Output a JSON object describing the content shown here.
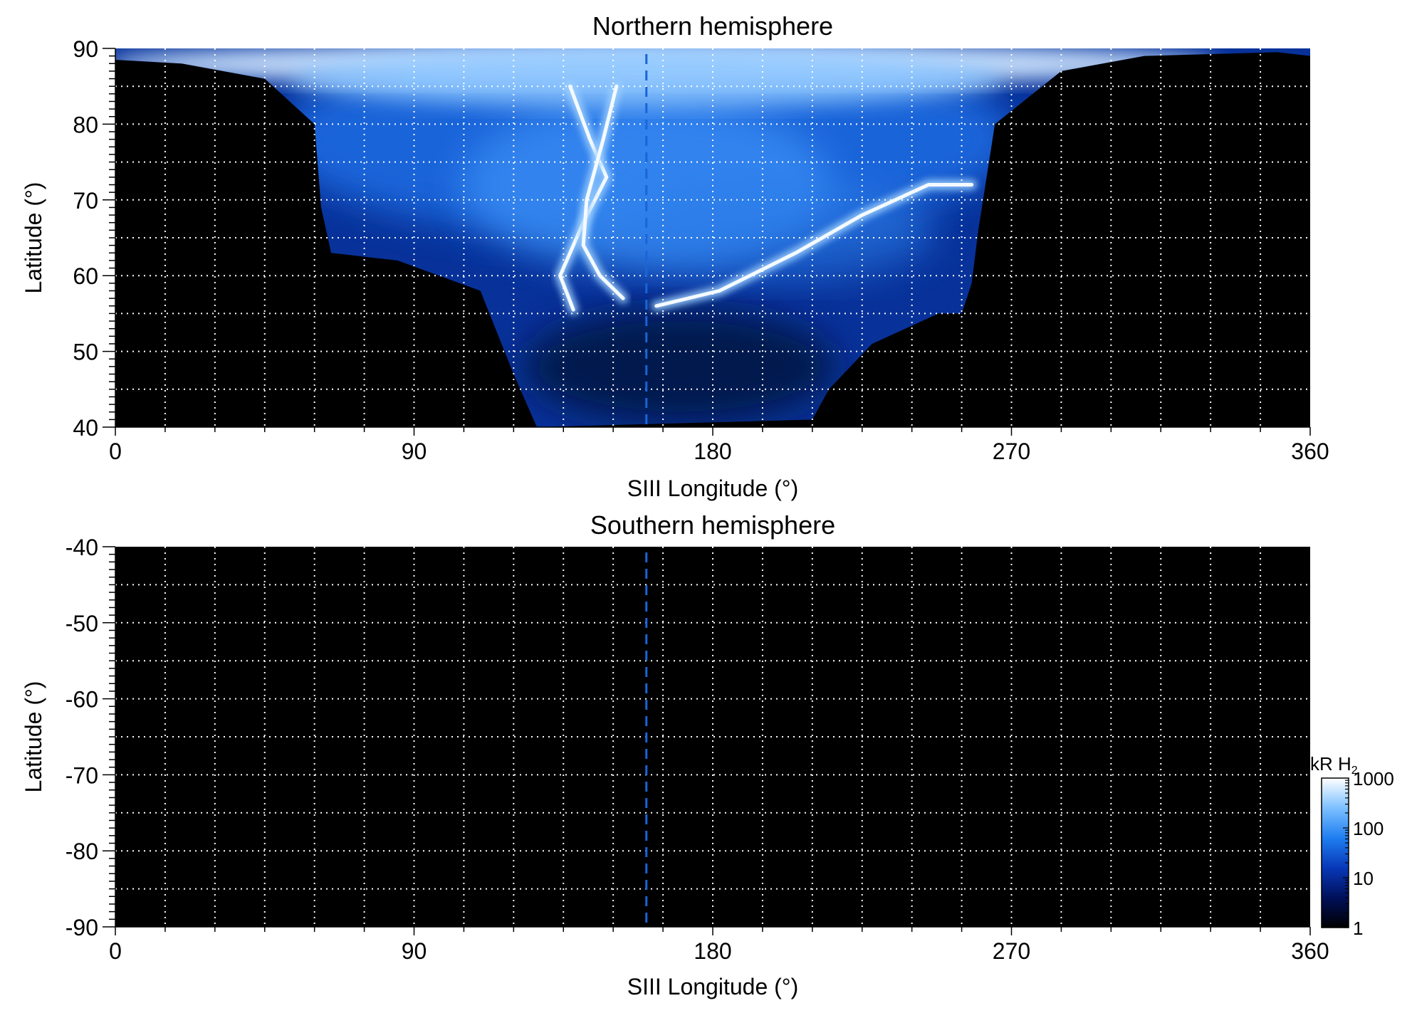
{
  "chart_data": [
    {
      "type": "heatmap",
      "title": "Northern hemisphere",
      "xlabel": "SIII Longitude (°)",
      "ylabel": "Latitude (°)",
      "xlim": [
        0,
        360
      ],
      "ylim": [
        40,
        90
      ],
      "xticks": [
        0,
        90,
        180,
        270,
        360
      ],
      "xtick_labels": [
        "0",
        "90",
        "180",
        "270",
        "360"
      ],
      "yticks": [
        40,
        50,
        60,
        70,
        80,
        90
      ],
      "ytick_labels": [
        "40",
        "50",
        "60",
        "70",
        "80",
        "90"
      ],
      "grid": true,
      "grid_x_spacing": 15,
      "grid_y_spacing": 5,
      "dashed_line_longitude": 160,
      "coverage_boundary": {
        "lower_latitude_limit_by_longitude": [
          [
            0,
            88.5
          ],
          [
            20,
            88
          ],
          [
            45,
            86
          ],
          [
            60,
            80
          ],
          [
            62,
            69
          ],
          [
            65,
            63
          ],
          [
            85,
            62
          ],
          [
            110,
            58
          ],
          [
            120,
            47
          ],
          [
            127,
            40
          ],
          [
            210,
            41
          ],
          [
            215,
            45
          ],
          [
            228,
            51
          ],
          [
            248,
            55
          ],
          [
            255,
            55
          ],
          [
            258,
            59
          ],
          [
            260,
            66
          ],
          [
            265,
            80
          ],
          [
            285,
            87
          ],
          [
            310,
            89
          ],
          [
            350,
            89.5
          ],
          [
            360,
            89
          ]
        ]
      },
      "features": [
        {
          "description": "bright arc",
          "points": [
            [
              138,
              55.5
            ],
            [
              134,
              60
            ],
            [
              141,
              67
            ],
            [
              148,
              73
            ],
            [
              143,
              78
            ],
            [
              137,
              85
            ]
          ]
        },
        {
          "description": "bright arc",
          "points": [
            [
              153,
              57
            ],
            [
              146,
              60
            ],
            [
              141,
              64
            ],
            [
              142,
              70
            ],
            [
              147,
              78
            ],
            [
              151,
              85
            ]
          ]
        },
        {
          "description": "bright arc",
          "points": [
            [
              163,
              56
            ],
            [
              182,
              58
            ],
            [
              205,
              63
            ],
            [
              225,
              68
            ],
            [
              245,
              72
            ],
            [
              258,
              72
            ]
          ]
        }
      ]
    },
    {
      "type": "heatmap",
      "title": "Southern hemisphere",
      "xlabel": "SIII Longitude (°)",
      "ylabel": "Latitude (°)",
      "xlim": [
        0,
        360
      ],
      "ylim": [
        -90,
        -40
      ],
      "xticks": [
        0,
        90,
        180,
        270,
        360
      ],
      "xtick_labels": [
        "0",
        "90",
        "180",
        "270",
        "360"
      ],
      "yticks": [
        -40,
        -50,
        -60,
        -70,
        -80,
        -90
      ],
      "ytick_labels": [
        "-40",
        "-50",
        "-60",
        "-70",
        "-80",
        "-90"
      ],
      "grid": true,
      "grid_x_spacing": 15,
      "grid_y_spacing": 5,
      "dashed_line_longitude": 160,
      "note": "no emission; all black"
    }
  ],
  "colorbar": {
    "label_main": "kR H",
    "label_sub": "2",
    "scale": "log",
    "range": [
      1,
      1000
    ],
    "tick_values": [
      1,
      10,
      100,
      1000
    ],
    "tick_labels": [
      "1",
      "10",
      "100",
      "1000"
    ],
    "colors": [
      "#000000",
      "#00105a",
      "#0838b8",
      "#1f7ef0",
      "#7cc0ff",
      "#ffffff"
    ]
  },
  "colors": {
    "grid": "#ffffff",
    "dashed_line": "#1a64d8",
    "background": "#000000"
  }
}
